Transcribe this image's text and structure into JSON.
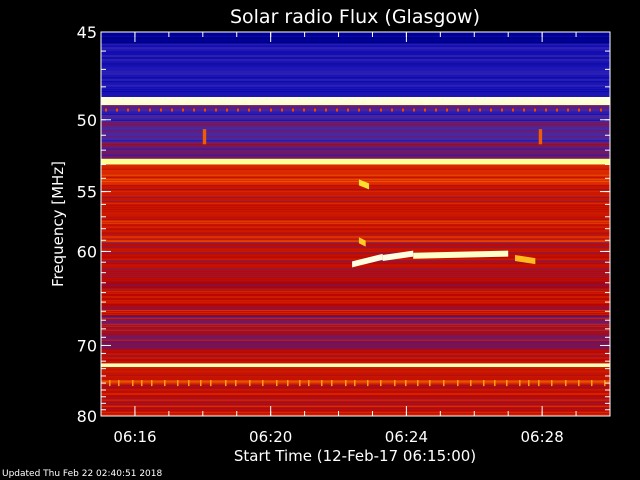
{
  "chart_data": {
    "type": "heatmap",
    "title": "Solar radio Flux (Glasgow)",
    "xlabel": "Start Time (12-Feb-17 06:15:00)",
    "ylabel": "Frequency [MHz]",
    "x_ticks": [
      {
        "label": "06:16",
        "minutes": 1
      },
      {
        "label": "06:20",
        "minutes": 5
      },
      {
        "label": "06:24",
        "minutes": 9
      },
      {
        "label": "06:28",
        "minutes": 13
      }
    ],
    "x_range_minutes_after_start": [
      0,
      15
    ],
    "y_ticks": [
      45,
      50,
      55,
      60,
      70,
      80
    ],
    "y_range": [
      45,
      80
    ],
    "y_scale": "reciprocal",
    "colormap": [
      "#000000",
      "#0000b4",
      "#3c2cb4",
      "#b40000",
      "#e03000",
      "#ff8000",
      "#ffff40",
      "#ffffff"
    ],
    "rows": [
      {
        "y": [
          45.0,
          45.6
        ],
        "level": 0.12,
        "noise": 0.2
      },
      {
        "y": [
          45.6,
          48.6
        ],
        "level": 0.22,
        "noise": 0.35
      },
      {
        "y": [
          48.6,
          49.1
        ],
        "level": 0.97,
        "noise": 0.05
      },
      {
        "y": [
          49.1,
          50.0
        ],
        "level": 0.28,
        "noise": 0.5
      },
      {
        "y": [
          50.0,
          51.6
        ],
        "level": 0.3,
        "noise": 0.55
      },
      {
        "y": [
          51.6,
          52.6
        ],
        "level": 0.35,
        "noise": 0.6
      },
      {
        "y": [
          52.6,
          53.0
        ],
        "level": 0.92,
        "noise": 0.1
      },
      {
        "y": [
          53.0,
          54.5
        ],
        "level": 0.55,
        "noise": 0.4
      },
      {
        "y": [
          54.5,
          58.5
        ],
        "level": 0.5,
        "noise": 0.45
      },
      {
        "y": [
          58.5,
          59.2
        ],
        "level": 0.55,
        "noise": 0.5
      },
      {
        "y": [
          59.2,
          63.0
        ],
        "level": 0.47,
        "noise": 0.5
      },
      {
        "y": [
          63.0,
          63.8
        ],
        "level": 0.4,
        "noise": 0.5
      },
      {
        "y": [
          63.8,
          66.5
        ],
        "level": 0.45,
        "noise": 0.55
      },
      {
        "y": [
          66.5,
          70.5
        ],
        "level": 0.38,
        "noise": 0.6
      },
      {
        "y": [
          70.5,
          72.3
        ],
        "level": 0.47,
        "noise": 0.5
      },
      {
        "y": [
          72.3,
          72.8
        ],
        "level": 0.95,
        "noise": 0.08
      },
      {
        "y": [
          72.8,
          74.6
        ],
        "level": 0.5,
        "noise": 0.4
      },
      {
        "y": [
          74.6,
          75.0
        ],
        "level": 0.6,
        "noise": 0.6
      },
      {
        "y": [
          75.0,
          80.0
        ],
        "level": 0.47,
        "noise": 0.45
      }
    ],
    "features": [
      {
        "name": "type-iii-burst-segment-1",
        "t": [
          7.4,
          8.3
        ],
        "f": [
          61.2,
          60.5
        ],
        "level": 0.98
      },
      {
        "name": "type-iii-burst-segment-2",
        "t": [
          8.3,
          9.2
        ],
        "f": [
          60.6,
          60.2
        ],
        "level": 0.98
      },
      {
        "name": "type-iii-burst-segment-3",
        "t": [
          9.2,
          12.0
        ],
        "f": [
          60.4,
          60.2
        ],
        "level": 0.96
      },
      {
        "name": "burst-blob-54",
        "t": [
          7.6,
          7.9
        ],
        "f": [
          54.3,
          54.6
        ],
        "level": 0.82
      },
      {
        "name": "burst-blob-59",
        "t": [
          7.6,
          7.8
        ],
        "f": [
          59.0,
          59.3
        ],
        "level": 0.8
      },
      {
        "name": "burst-blob-60-right",
        "t": [
          12.2,
          12.8
        ],
        "f": [
          60.6,
          60.9
        ],
        "level": 0.78
      },
      {
        "name": "red-spike-left",
        "t": [
          3.0,
          3.1
        ],
        "f": [
          50.6,
          51.6
        ],
        "level": 0.65
      },
      {
        "name": "red-spike-right",
        "t": [
          12.9,
          13.0
        ],
        "f": [
          50.6,
          51.6
        ],
        "level": 0.65
      }
    ]
  },
  "footer": {
    "updated": "Updated Thu Feb 22 02:40:51 2018"
  }
}
